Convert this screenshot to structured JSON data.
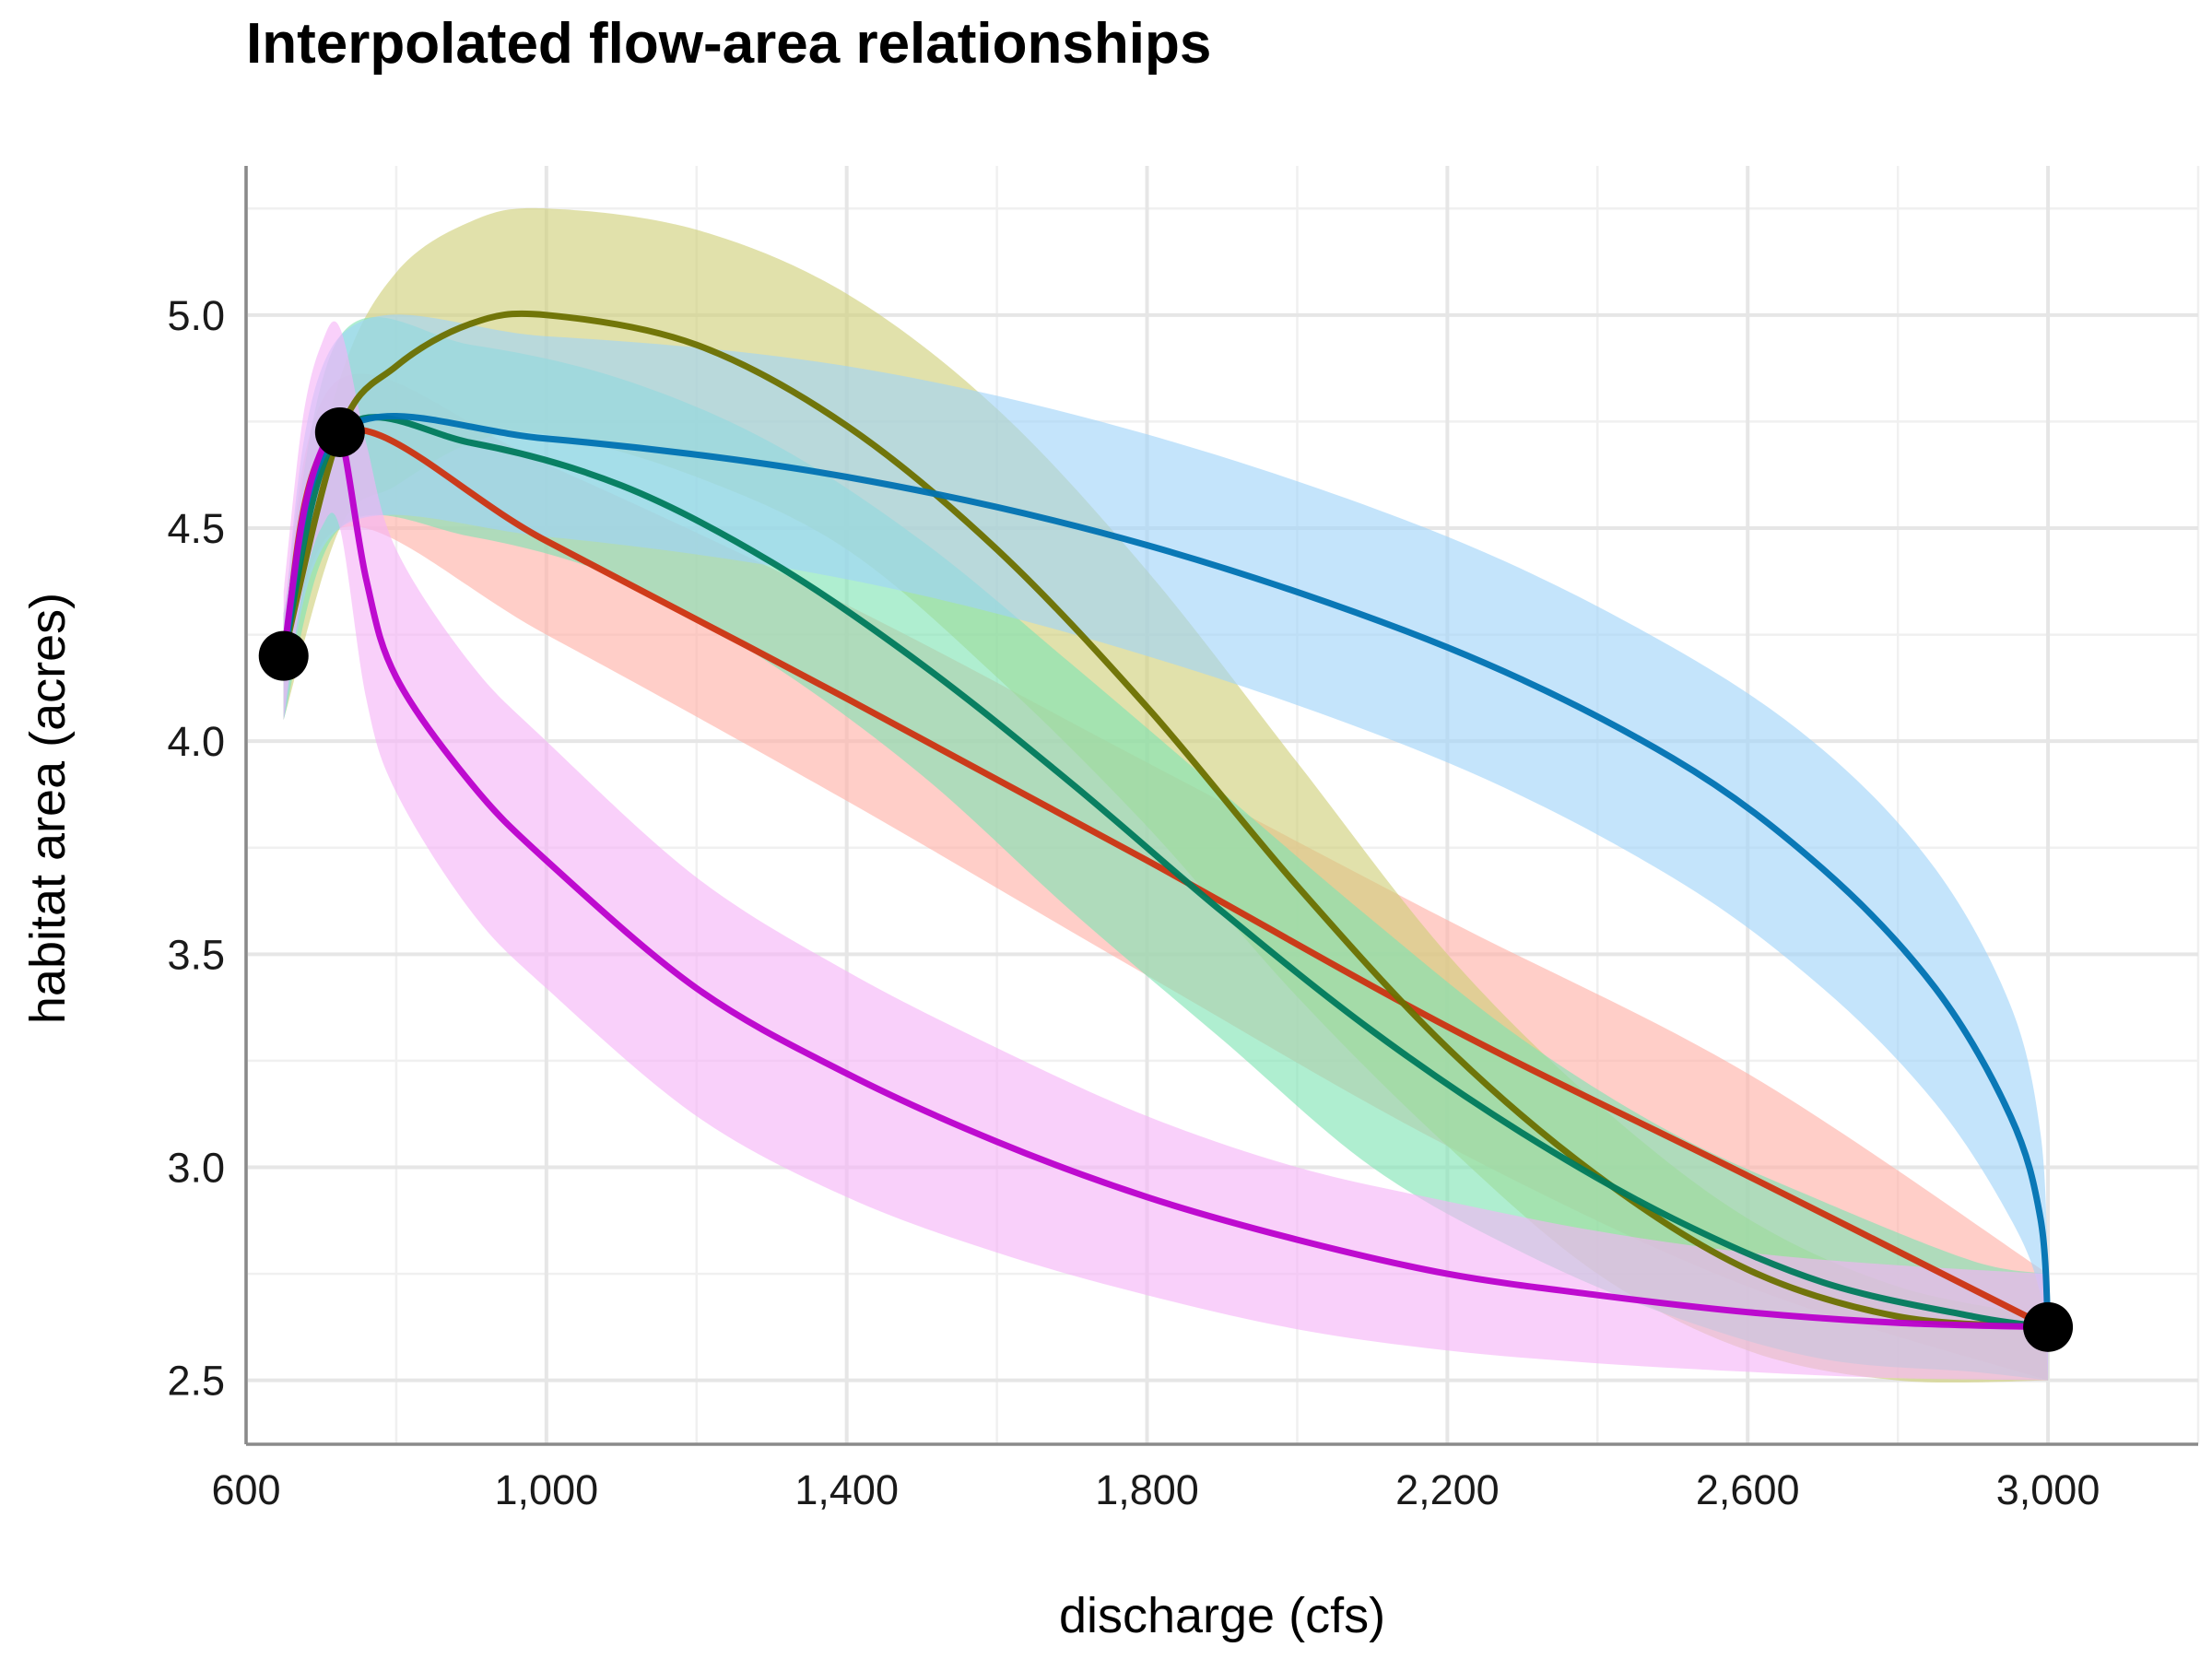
{
  "chart_data": {
    "type": "line",
    "title": "Interpolated flow-area relationships",
    "xlabel": "discharge (cfs)",
    "ylabel": "habitat area (acres)",
    "xlim": [
      600,
      3200
    ],
    "ylim": [
      2.35,
      5.35
    ],
    "x_ticks": [
      600,
      1000,
      1400,
      1800,
      2200,
      2600,
      3000
    ],
    "x_tick_labels": [
      "600",
      "1,000",
      "1,400",
      "1,800",
      "2,200",
      "2,600",
      "3,000"
    ],
    "x_minor_ticks": [
      800,
      1200,
      1600,
      2000,
      2400,
      2800,
      3200
    ],
    "y_ticks": [
      2.5,
      3.0,
      3.5,
      4.0,
      4.5,
      5.0
    ],
    "y_tick_labels": [
      "2.5",
      "3.0",
      "3.5",
      "4.0",
      "4.5",
      "5.0"
    ],
    "y_minor_ticks": [
      2.75,
      3.25,
      3.75,
      4.25,
      4.75,
      5.25
    ],
    "grid": true,
    "legend": "none",
    "observed_points": [
      {
        "x": 650,
        "y": 4.2
      },
      {
        "x": 725,
        "y": 4.725
      },
      {
        "x": 3000,
        "y": 2.625
      }
    ],
    "series": [
      {
        "color": "#cc3311",
        "band_color": "#ffb0a6",
        "x": [
          650,
          725,
          1000,
          1400,
          1800,
          2200,
          2600,
          3000
        ],
        "y": [
          4.2,
          4.725,
          4.47,
          4.1,
          3.72,
          3.33,
          2.98,
          2.625
        ],
        "lower": [
          4.05,
          4.5,
          4.25,
          3.86,
          3.45,
          3.05,
          2.72,
          2.5
        ],
        "upper": [
          4.3,
          4.85,
          4.65,
          4.32,
          3.95,
          3.58,
          3.22,
          2.75
        ]
      },
      {
        "color": "#6b7000",
        "band_color": "#cfcf78",
        "x": [
          650,
          725,
          800,
          900,
          1000,
          1200,
          1400,
          1600,
          1800,
          2000,
          2200,
          2400,
          2600,
          2800,
          3000
        ],
        "y": [
          4.2,
          4.725,
          4.88,
          4.98,
          5.0,
          4.93,
          4.74,
          4.45,
          4.08,
          3.66,
          3.28,
          2.98,
          2.76,
          2.65,
          2.625
        ],
        "lower": [
          4.05,
          4.5,
          4.6,
          4.7,
          4.72,
          4.62,
          4.45,
          4.15,
          3.8,
          3.4,
          3.05,
          2.75,
          2.57,
          2.5,
          2.5
        ],
        "upper": [
          4.3,
          4.85,
          5.1,
          5.22,
          5.25,
          5.2,
          5.05,
          4.78,
          4.4,
          3.95,
          3.5,
          3.15,
          2.88,
          2.72,
          2.65
        ]
      },
      {
        "color": "#007a5c",
        "band_color": "#7ee3b3",
        "x": [
          650,
          725,
          900,
          1100,
          1300,
          1500,
          1700,
          1900,
          2100,
          2300,
          2500,
          2700,
          2900,
          3000
        ],
        "y": [
          4.2,
          4.725,
          4.7,
          4.6,
          4.42,
          4.18,
          3.9,
          3.6,
          3.32,
          3.08,
          2.88,
          2.73,
          2.65,
          2.625
        ],
        "lower": [
          4.05,
          4.5,
          4.48,
          4.38,
          4.18,
          3.92,
          3.6,
          3.3,
          3.0,
          2.8,
          2.65,
          2.55,
          2.52,
          2.5
        ],
        "upper": [
          4.3,
          4.95,
          4.93,
          4.85,
          4.7,
          4.47,
          4.18,
          3.88,
          3.58,
          3.3,
          3.08,
          2.92,
          2.78,
          2.75
        ]
      },
      {
        "color": "#0072b2",
        "band_color": "#9fd4f8",
        "x": [
          650,
          725,
          1000,
          1400,
          1800,
          2200,
          2500,
          2700,
          2850,
          2950,
          2990,
          3000
        ],
        "y": [
          4.2,
          4.725,
          4.71,
          4.62,
          4.46,
          4.22,
          3.96,
          3.7,
          3.42,
          3.12,
          2.88,
          2.625
        ],
        "lower": [
          4.05,
          4.5,
          4.48,
          4.38,
          4.2,
          3.95,
          3.68,
          3.42,
          3.15,
          2.88,
          2.7,
          2.5
        ],
        "upper": [
          4.3,
          4.95,
          4.95,
          4.88,
          4.72,
          4.48,
          4.22,
          3.98,
          3.7,
          3.38,
          3.08,
          2.75
        ]
      },
      {
        "color": "#bb00cc",
        "band_color": "#f5b3f7",
        "x": [
          650,
          675,
          700,
          725,
          760,
          800,
          900,
          1000,
          1200,
          1400,
          1600,
          1800,
          2000,
          2200,
          2400,
          2600,
          2800,
          3000
        ],
        "y": [
          4.2,
          4.52,
          4.68,
          4.725,
          4.38,
          4.15,
          3.9,
          3.72,
          3.42,
          3.22,
          3.06,
          2.93,
          2.83,
          2.75,
          2.7,
          2.66,
          2.635,
          2.625
        ],
        "lower": [
          4.05,
          4.35,
          4.5,
          4.5,
          4.1,
          3.88,
          3.6,
          3.42,
          3.12,
          2.93,
          2.8,
          2.7,
          2.62,
          2.57,
          2.54,
          2.52,
          2.505,
          2.5
        ],
        "upper": [
          4.35,
          4.75,
          4.93,
          4.97,
          4.7,
          4.45,
          4.18,
          4.0,
          3.68,
          3.46,
          3.28,
          3.12,
          3.0,
          2.92,
          2.85,
          2.8,
          2.77,
          2.75
        ]
      }
    ]
  }
}
